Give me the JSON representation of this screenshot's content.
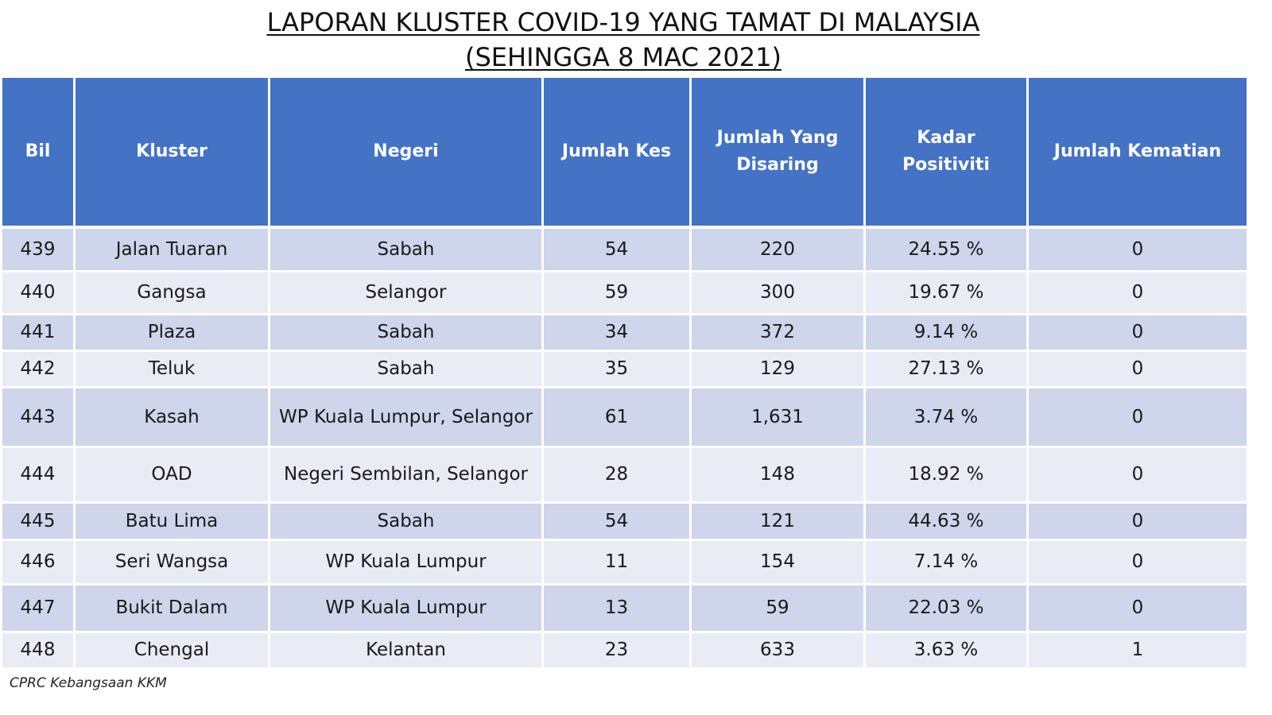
{
  "title": {
    "line1": "LAPORAN KLUSTER COVID-19 YANG TAMAT DI MALAYSIA",
    "line2": "(SEHINGGA 8 MAC 2021)"
  },
  "table": {
    "headers": [
      "Bil",
      "Kluster",
      "Negeri",
      "Jumlah Kes",
      "Jumlah Yang Disaring",
      "Kadar Positiviti",
      "Jumlah Kematian"
    ],
    "rows": [
      [
        "439",
        "Jalan Tuaran",
        "Sabah",
        "54",
        "220",
        "24.55 %",
        "0"
      ],
      [
        "440",
        "Gangsa",
        "Selangor",
        "59",
        "300",
        "19.67 %",
        "0"
      ],
      [
        "441",
        "Plaza",
        "Sabah",
        "34",
        "372",
        "9.14 %",
        "0"
      ],
      [
        "442",
        "Teluk",
        "Sabah",
        "35",
        "129",
        "27.13 %",
        "0"
      ],
      [
        "443",
        "Kasah",
        "WP Kuala Lumpur, Selangor",
        "61",
        "1,631",
        "3.74 %",
        "0"
      ],
      [
        "444",
        "OAD",
        "Negeri Sembilan, Selangor",
        "28",
        "148",
        "18.92 %",
        "0"
      ],
      [
        "445",
        "Batu Lima",
        "Sabah",
        "54",
        "121",
        "44.63 %",
        "0"
      ],
      [
        "446",
        "Seri Wangsa",
        "WP Kuala Lumpur",
        "11",
        "154",
        "7.14 %",
        "0"
      ],
      [
        "447",
        "Bukit Dalam",
        "WP Kuala Lumpur",
        "13",
        "59",
        "22.03 %",
        "0"
      ],
      [
        "448",
        "Chengal",
        "Kelantan",
        "23",
        "633",
        "3.63 %",
        "1"
      ]
    ]
  },
  "source": "CPRC Kebangsaan KKM",
  "colors": {
    "header_bg": "#4472c4",
    "row_dark": "#cfd5ea",
    "row_light": "#e9ebf5"
  }
}
